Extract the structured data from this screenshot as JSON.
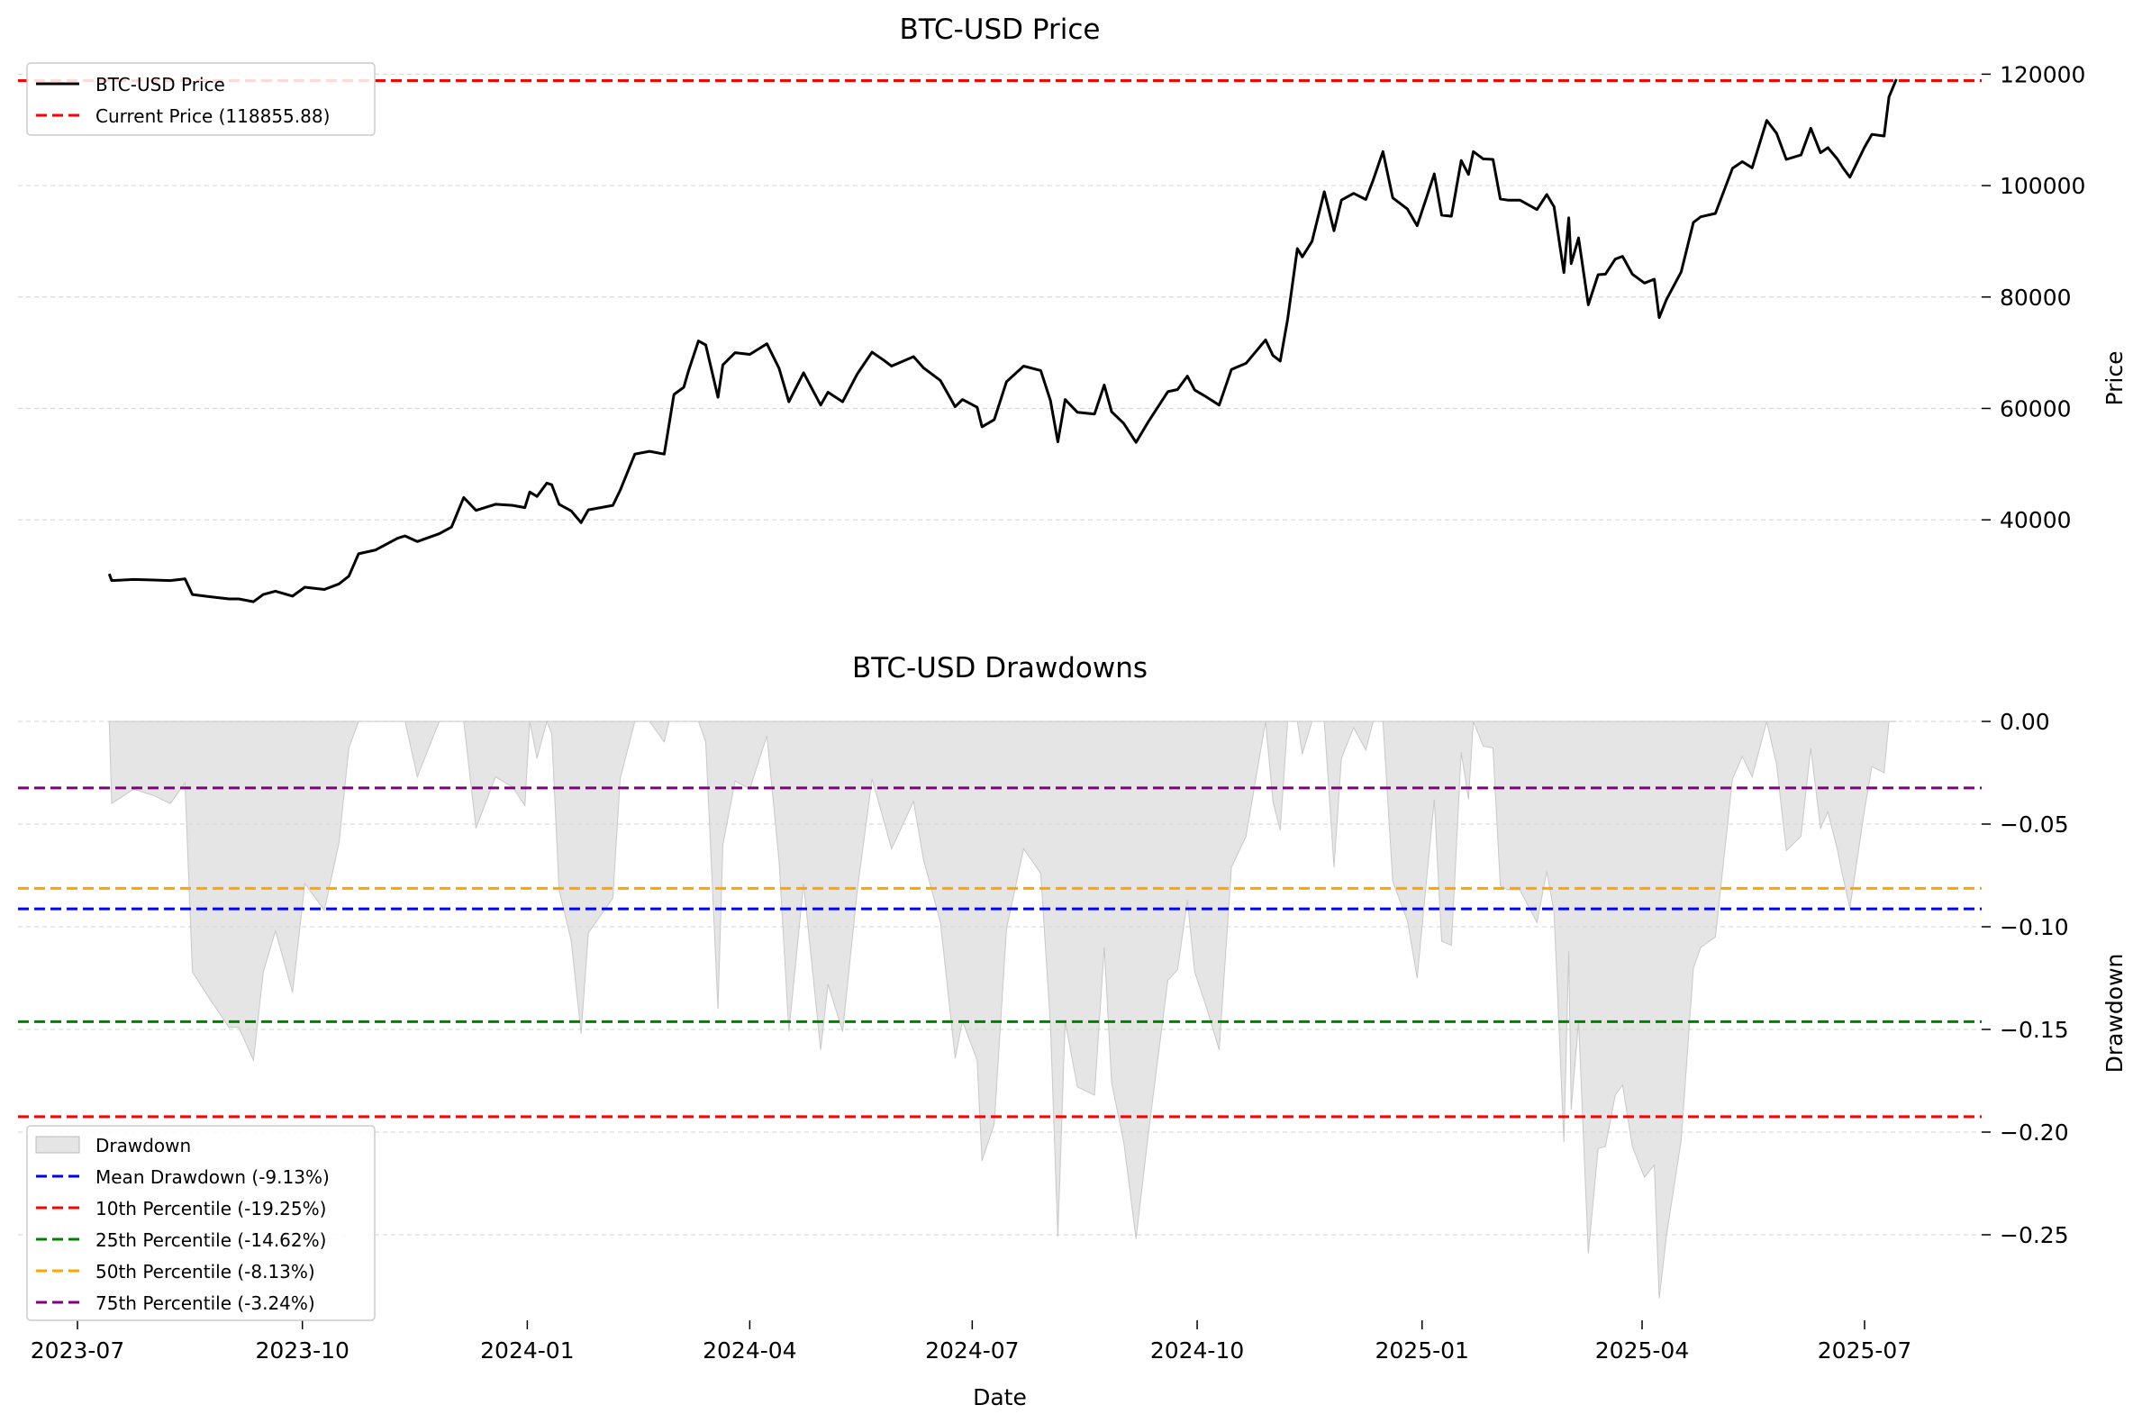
{
  "chart_data": [
    {
      "type": "line",
      "title": "BTC-USD Price",
      "xlabel": "",
      "ylabel": "Price",
      "ylim": [
        14000,
        122000
      ],
      "yticks": [
        40000,
        60000,
        80000,
        100000,
        120000
      ],
      "ytick_labels": [
        "40000",
        "60000",
        "80000",
        "100000",
        "120000"
      ],
      "grid": "horizontal dashed",
      "legend_position": "top-left",
      "line_color": "#000000",
      "series": [
        {
          "name": "BTC-USD Price",
          "x": [
            "2023-07-14",
            "2023-07-15",
            "2023-07-24",
            "2023-08-01",
            "2023-08-08",
            "2023-08-14",
            "2023-08-17",
            "2023-08-24",
            "2023-09-01",
            "2023-09-05",
            "2023-09-11",
            "2023-09-15",
            "2023-09-20",
            "2023-09-27",
            "2023-10-02",
            "2023-10-10",
            "2023-10-16",
            "2023-10-20",
            "2023-10-24",
            "2023-10-31",
            "2023-11-09",
            "2023-11-12",
            "2023-11-17",
            "2023-11-26",
            "2023-12-01",
            "2023-12-04",
            "2023-12-06",
            "2023-12-11",
            "2023-12-19",
            "2023-12-26",
            "2023-12-31",
            "2024-01-02",
            "2024-01-05",
            "2024-01-09",
            "2024-01-11",
            "2024-01-14",
            "2024-01-19",
            "2024-01-23",
            "2024-01-26",
            "2024-02-05",
            "2024-02-08",
            "2024-02-14",
            "2024-02-20",
            "2024-02-26",
            "2024-02-28",
            "2024-03-01",
            "2024-03-05",
            "2024-03-07",
            "2024-03-11",
            "2024-03-14",
            "2024-03-19",
            "2024-03-21",
            "2024-03-26",
            "2024-04-01",
            "2024-04-08",
            "2024-04-13",
            "2024-04-17",
            "2024-04-23",
            "2024-04-30",
            "2024-05-03",
            "2024-05-09",
            "2024-05-15",
            "2024-05-21",
            "2024-05-26",
            "2024-05-29",
            "2024-06-07",
            "2024-06-11",
            "2024-06-18",
            "2024-06-24",
            "2024-06-27",
            "2024-07-03",
            "2024-07-05",
            "2024-07-10",
            "2024-07-15",
            "2024-07-22",
            "2024-07-29",
            "2024-08-02",
            "2024-08-05",
            "2024-08-08",
            "2024-08-13",
            "2024-08-20",
            "2024-08-24",
            "2024-08-27",
            "2024-09-01",
            "2024-09-06",
            "2024-09-11",
            "2024-09-19",
            "2024-09-23",
            "2024-09-27",
            "2024-09-30",
            "2024-10-05",
            "2024-10-10",
            "2024-10-15",
            "2024-10-21",
            "2024-10-29",
            "2024-11-01",
            "2024-11-04",
            "2024-11-07",
            "2024-11-11",
            "2024-11-13",
            "2024-11-17",
            "2024-11-22",
            "2024-11-26",
            "2024-11-29",
            "2024-12-04",
            "2024-12-09",
            "2024-12-12",
            "2024-12-16",
            "2024-12-20",
            "2024-12-26",
            "2024-12-30",
            "2025-01-03",
            "2025-01-06",
            "2025-01-09",
            "2025-01-13",
            "2025-01-17",
            "2025-01-20",
            "2025-01-22",
            "2025-01-26",
            "2025-01-30",
            "2025-02-02",
            "2025-02-05",
            "2025-02-10",
            "2025-02-17",
            "2025-02-21",
            "2025-02-24",
            "2025-02-28",
            "2025-03-02",
            "2025-03-03",
            "2025-03-06",
            "2025-03-10",
            "2025-03-14",
            "2025-03-17",
            "2025-03-21",
            "2025-03-24",
            "2025-03-28",
            "2025-04-02",
            "2025-04-06",
            "2025-04-08",
            "2025-04-11",
            "2025-04-17",
            "2025-04-22",
            "2025-04-25",
            "2025-05-01",
            "2025-05-08",
            "2025-05-12",
            "2025-05-16",
            "2025-05-22",
            "2025-05-26",
            "2025-05-30",
            "2025-06-05",
            "2025-06-09",
            "2025-06-13",
            "2025-06-16",
            "2025-06-20",
            "2025-06-22",
            "2025-06-25",
            "2025-07-01",
            "2025-07-04",
            "2025-07-09",
            "2025-07-11",
            "2025-07-14"
          ],
          "y": [
            30300,
            29100,
            29300,
            29200,
            29100,
            29400,
            26600,
            26200,
            25800,
            25800,
            25300,
            26600,
            27200,
            26300,
            27900,
            27500,
            28500,
            29900,
            33900,
            34600,
            36700,
            37100,
            36100,
            37500,
            38700,
            41900,
            44000,
            41700,
            42800,
            42600,
            42200,
            45000,
            44200,
            46600,
            46300,
            42800,
            41600,
            39500,
            41800,
            42600,
            45300,
            51800,
            52300,
            51800,
            57100,
            62500,
            63800,
            66800,
            72100,
            71400,
            62000,
            67800,
            70000,
            69700,
            71600,
            67200,
            61200,
            66400,
            60600,
            62900,
            61200,
            66200,
            70100,
            68600,
            67600,
            69300,
            67300,
            65000,
            60300,
            61600,
            60200,
            56700,
            58000,
            64800,
            67600,
            66800,
            61400,
            54000,
            61600,
            59300,
            59000,
            64200,
            59400,
            57300,
            53900,
            57600,
            63000,
            63400,
            65800,
            63300,
            62000,
            60600,
            67000,
            68100,
            72300,
            69500,
            68500,
            76000,
            88700,
            87200,
            90000,
            98900,
            91900,
            97400,
            98600,
            97500,
            101000,
            106100,
            97800,
            95800,
            92800,
            98100,
            102100,
            94700,
            94500,
            104500,
            102000,
            106100,
            104800,
            104700,
            97600,
            97400,
            97400,
            95700,
            98400,
            96200,
            84400,
            94200,
            86000,
            90600,
            78600,
            84000,
            84100,
            86800,
            87300,
            84100,
            82500,
            83200,
            76300,
            79600,
            84500,
            93400,
            94400,
            95000,
            103100,
            104300,
            103200,
            111700,
            109400,
            104700,
            105500,
            110300,
            105900,
            106800,
            104700,
            103300,
            101500,
            106900,
            109200,
            108900,
            115900,
            119100
          ]
        }
      ],
      "reference_lines": [
        {
          "name": "Current Price (118855.88)",
          "value": 118855.88,
          "color": "#ff0000",
          "style": "dashed"
        }
      ]
    },
    {
      "type": "area",
      "title": "BTC-USD Drawdowns",
      "xlabel": "Date",
      "ylabel": "Drawdown",
      "ylim": [
        -0.29,
        0.003
      ],
      "yticks": [
        0.0,
        -0.05,
        -0.1,
        -0.15,
        -0.2,
        -0.25
      ],
      "ytick_labels": [
        "0.00",
        "−0.05",
        "−0.10",
        "−0.15",
        "−0.20",
        "−0.25"
      ],
      "xticks": [
        "2023-07-01",
        "2023-10-01",
        "2024-01-01",
        "2024-04-01",
        "2024-07-01",
        "2024-10-01",
        "2025-01-01",
        "2025-04-01",
        "2025-07-01"
      ],
      "xtick_labels": [
        "2023-07",
        "2023-10",
        "2024-01",
        "2024-04",
        "2024-07",
        "2024-10",
        "2025-01",
        "2025-04",
        "2025-07"
      ],
      "grid": "horizontal dashed",
      "legend_position": "bottom-left",
      "fill_color": "#d3d3d3",
      "series": [
        {
          "name": "Drawdown",
          "x": [
            "2023-07-14",
            "2023-07-15",
            "2023-07-24",
            "2023-08-01",
            "2023-08-08",
            "2023-08-14",
            "2023-08-17",
            "2023-08-24",
            "2023-09-01",
            "2023-09-05",
            "2023-09-11",
            "2023-09-15",
            "2023-09-20",
            "2023-09-27",
            "2023-10-02",
            "2023-10-10",
            "2023-10-16",
            "2023-10-20",
            "2023-10-24",
            "2023-10-31",
            "2023-11-09",
            "2023-11-12",
            "2023-11-17",
            "2023-11-26",
            "2023-12-01",
            "2023-12-04",
            "2023-12-06",
            "2023-12-11",
            "2023-12-19",
            "2023-12-26",
            "2023-12-31",
            "2024-01-02",
            "2024-01-05",
            "2024-01-09",
            "2024-01-11",
            "2024-01-14",
            "2024-01-19",
            "2024-01-23",
            "2024-01-26",
            "2024-02-05",
            "2024-02-08",
            "2024-02-14",
            "2024-02-20",
            "2024-02-26",
            "2024-02-28",
            "2024-03-01",
            "2024-03-05",
            "2024-03-07",
            "2024-03-11",
            "2024-03-14",
            "2024-03-19",
            "2024-03-21",
            "2024-03-26",
            "2024-04-01",
            "2024-04-08",
            "2024-04-13",
            "2024-04-17",
            "2024-04-23",
            "2024-04-30",
            "2024-05-03",
            "2024-05-09",
            "2024-05-15",
            "2024-05-21",
            "2024-05-26",
            "2024-05-29",
            "2024-06-07",
            "2024-06-11",
            "2024-06-18",
            "2024-06-24",
            "2024-06-27",
            "2024-07-03",
            "2024-07-05",
            "2024-07-10",
            "2024-07-15",
            "2024-07-22",
            "2024-07-29",
            "2024-08-02",
            "2024-08-05",
            "2024-08-08",
            "2024-08-13",
            "2024-08-20",
            "2024-08-24",
            "2024-08-27",
            "2024-09-01",
            "2024-09-06",
            "2024-09-11",
            "2024-09-19",
            "2024-09-23",
            "2024-09-27",
            "2024-09-30",
            "2024-10-05",
            "2024-10-10",
            "2024-10-15",
            "2024-10-21",
            "2024-10-29",
            "2024-11-01",
            "2024-11-04",
            "2024-11-07",
            "2024-11-11",
            "2024-11-13",
            "2024-11-17",
            "2024-11-22",
            "2024-11-26",
            "2024-11-29",
            "2024-12-04",
            "2024-12-09",
            "2024-12-12",
            "2024-12-16",
            "2024-12-20",
            "2024-12-26",
            "2024-12-30",
            "2025-01-03",
            "2025-01-06",
            "2025-01-09",
            "2025-01-13",
            "2025-01-17",
            "2025-01-20",
            "2025-01-22",
            "2025-01-26",
            "2025-01-30",
            "2025-02-02",
            "2025-02-05",
            "2025-02-10",
            "2025-02-17",
            "2025-02-21",
            "2025-02-24",
            "2025-02-28",
            "2025-03-02",
            "2025-03-03",
            "2025-03-06",
            "2025-03-10",
            "2025-03-14",
            "2025-03-17",
            "2025-03-21",
            "2025-03-24",
            "2025-03-28",
            "2025-04-02",
            "2025-04-06",
            "2025-04-08",
            "2025-04-11",
            "2025-04-17",
            "2025-04-22",
            "2025-04-25",
            "2025-05-01",
            "2025-05-08",
            "2025-05-12",
            "2025-05-16",
            "2025-05-22",
            "2025-05-26",
            "2025-05-30",
            "2025-06-05",
            "2025-06-09",
            "2025-06-13",
            "2025-06-16",
            "2025-06-20",
            "2025-06-22",
            "2025-06-25",
            "2025-07-01",
            "2025-07-04",
            "2025-07-09",
            "2025-07-11",
            "2025-07-14"
          ],
          "y": [
            0,
            -0.04,
            -0.033,
            -0.036,
            -0.04,
            -0.03,
            -0.122,
            -0.135,
            -0.149,
            -0.149,
            -0.165,
            -0.122,
            -0.102,
            -0.132,
            -0.079,
            -0.092,
            -0.059,
            -0.013,
            0,
            0,
            0,
            0,
            -0.027,
            0,
            0,
            0,
            0,
            -0.052,
            -0.027,
            -0.032,
            -0.041,
            0,
            -0.018,
            0,
            -0.006,
            -0.082,
            -0.107,
            -0.152,
            -0.103,
            -0.086,
            -0.028,
            0,
            0,
            -0.01,
            0,
            0,
            0,
            0,
            0,
            -0.01,
            -0.14,
            -0.06,
            -0.029,
            -0.033,
            -0.007,
            -0.068,
            -0.151,
            -0.079,
            -0.16,
            -0.128,
            -0.151,
            -0.082,
            -0.028,
            -0.049,
            -0.062,
            -0.039,
            -0.067,
            -0.098,
            -0.164,
            -0.146,
            -0.165,
            -0.214,
            -0.196,
            -0.101,
            -0.062,
            -0.074,
            -0.148,
            -0.251,
            -0.146,
            -0.178,
            -0.182,
            -0.11,
            -0.176,
            -0.205,
            -0.252,
            -0.201,
            -0.126,
            -0.121,
            -0.087,
            -0.122,
            -0.14,
            -0.16,
            -0.071,
            -0.056,
            0,
            -0.039,
            -0.053,
            0,
            0,
            -0.016,
            0,
            0,
            -0.071,
            -0.018,
            -0.003,
            -0.014,
            0,
            0,
            -0.078,
            -0.097,
            -0.125,
            -0.075,
            -0.038,
            -0.107,
            -0.109,
            -0.015,
            -0.038,
            0,
            -0.012,
            -0.013,
            -0.08,
            -0.082,
            -0.082,
            -0.098,
            -0.073,
            -0.093,
            -0.205,
            -0.112,
            -0.189,
            -0.146,
            -0.259,
            -0.208,
            -0.207,
            -0.182,
            -0.177,
            -0.207,
            -0.222,
            -0.216,
            -0.281,
            -0.25,
            -0.204,
            -0.12,
            -0.11,
            -0.105,
            -0.028,
            -0.017,
            -0.027,
            0,
            -0.021,
            -0.063,
            -0.056,
            -0.013,
            -0.052,
            -0.044,
            -0.063,
            -0.075,
            -0.091,
            -0.043,
            -0.022,
            -0.025,
            0,
            0
          ]
        }
      ],
      "reference_lines": [
        {
          "name": "Mean Drawdown (-9.13%)",
          "value": -0.0913,
          "color": "#0000ff",
          "style": "dashed"
        },
        {
          "name": "10th Percentile (-19.25%)",
          "value": -0.1925,
          "color": "#ff0000",
          "style": "dashed"
        },
        {
          "name": "25th Percentile (-14.62%)",
          "value": -0.1462,
          "color": "#008000",
          "style": "dashed"
        },
        {
          "name": "50th Percentile (-8.13%)",
          "value": -0.0813,
          "color": "#ffa500",
          "style": "dashed"
        },
        {
          "name": "75th Percentile (-3.24%)",
          "value": -0.0324,
          "color": "#800080",
          "style": "dashed"
        }
      ]
    }
  ]
}
